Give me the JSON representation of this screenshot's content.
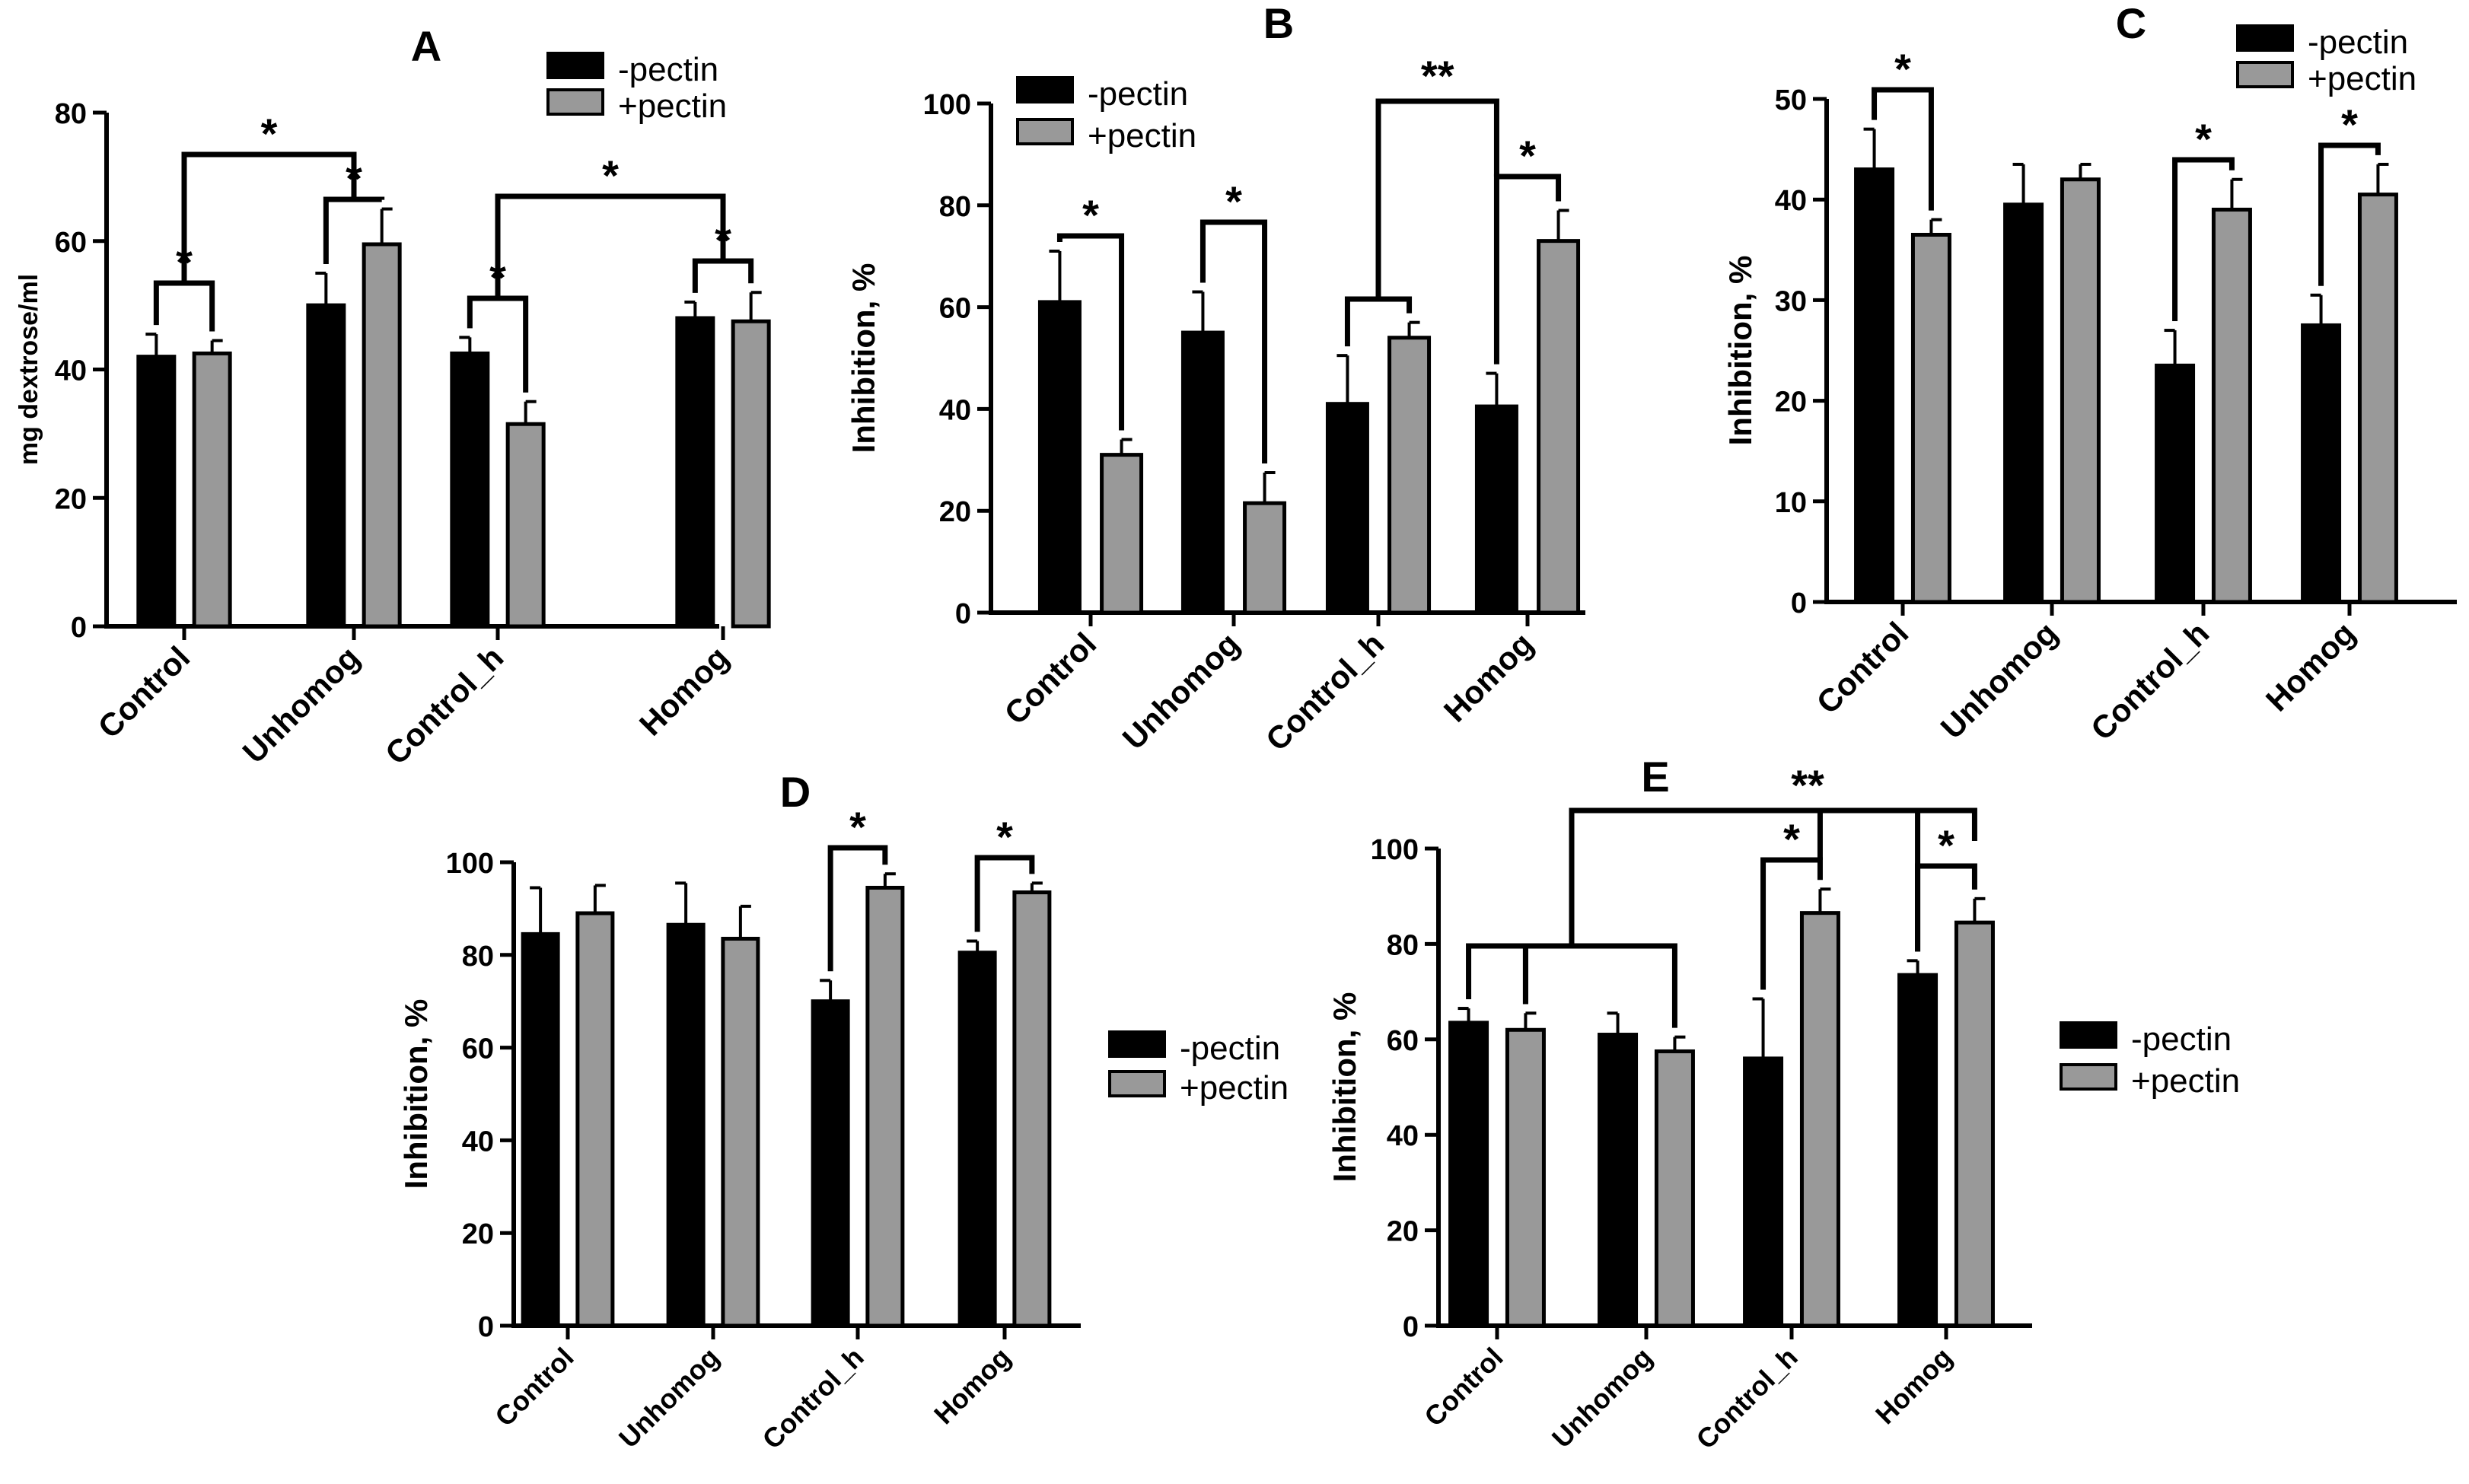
{
  "colors": {
    "minus": "#000000",
    "plus": "#999999",
    "outline": "#000000"
  },
  "chart_data": [
    {
      "panel": "A",
      "type": "bar",
      "title": "A",
      "xlabel": "",
      "ylabel": "mg dextrose/ml",
      "ylim": [
        0,
        80
      ],
      "yticks": [
        0,
        20,
        40,
        60,
        80
      ],
      "categories": [
        "Control",
        "Unhomog",
        "Control_h",
        "Homog"
      ],
      "series": [
        {
          "name": "-pectin",
          "values": [
            42,
            50,
            42.5,
            48
          ],
          "errors": [
            3.5,
            5,
            2.5,
            2.5
          ]
        },
        {
          "name": "+pectin",
          "values": [
            42.5,
            59.5,
            31.5,
            47.5
          ],
          "errors": [
            2,
            5.5,
            3.5,
            4.5
          ]
        }
      ],
      "legend": "top-right",
      "annotations": [
        {
          "label": "*",
          "from": [
            0,
            0
          ],
          "to": [
            0,
            1
          ]
        },
        {
          "label": "*",
          "from": [
            1,
            0
          ],
          "to": [
            1,
            1
          ]
        },
        {
          "label": "*",
          "from": [
            2,
            0
          ],
          "to": [
            2,
            1
          ]
        },
        {
          "label": "*",
          "from": [
            3,
            0
          ],
          "to": [
            3,
            1
          ]
        }
      ]
    },
    {
      "panel": "B",
      "type": "bar",
      "title": "B",
      "xlabel": "",
      "ylabel": "Inhibition, %",
      "ylim": [
        0,
        100
      ],
      "yticks": [
        0,
        20,
        40,
        60,
        80,
        100
      ],
      "categories": [
        "Control",
        "Unhomog",
        "Control_h",
        "Homog"
      ],
      "series": [
        {
          "name": "-pectin",
          "values": [
            61,
            55,
            41,
            40.5
          ],
          "errors": [
            10,
            8,
            9.5,
            6.5
          ]
        },
        {
          "name": "+pectin",
          "values": [
            31,
            21.5,
            54,
            73
          ],
          "errors": [
            3,
            6,
            3,
            6
          ]
        }
      ],
      "legend": "top-left",
      "annotations": [
        {
          "label": "*",
          "from": [
            0,
            0
          ],
          "to": [
            0,
            1
          ]
        },
        {
          "label": "*",
          "from": [
            1,
            0
          ],
          "to": [
            1,
            1
          ]
        },
        {
          "label": "*",
          "from": [
            3,
            0
          ],
          "to": [
            3,
            1
          ]
        },
        {
          "label": "**",
          "from": [
            2,
            0
          ],
          "to": [
            3,
            0
          ]
        }
      ]
    },
    {
      "panel": "C",
      "type": "bar",
      "title": "C",
      "xlabel": "",
      "ylabel": "Inhibition, %",
      "ylim": [
        0,
        50
      ],
      "yticks": [
        0,
        10,
        20,
        30,
        40,
        50
      ],
      "categories": [
        "Control",
        "Unhomog",
        "Control_h",
        "Homog"
      ],
      "series": [
        {
          "name": "-pectin",
          "values": [
            43,
            39.5,
            23.5,
            27.5
          ],
          "errors": [
            4,
            4,
            3.5,
            3
          ]
        },
        {
          "name": "+pectin",
          "values": [
            36.5,
            42,
            39,
            40.5
          ],
          "errors": [
            1.5,
            1.5,
            3,
            3
          ]
        }
      ],
      "legend": "top-right",
      "annotations": [
        {
          "label": "*",
          "from": [
            0,
            0
          ],
          "to": [
            0,
            1
          ]
        },
        {
          "label": "*",
          "from": [
            2,
            0
          ],
          "to": [
            2,
            1
          ]
        },
        {
          "label": "*",
          "from": [
            3,
            0
          ],
          "to": [
            3,
            1
          ]
        }
      ]
    },
    {
      "panel": "D",
      "type": "bar",
      "title": "D",
      "xlabel": "",
      "ylabel": "Inhibition, %",
      "ylim": [
        0,
        100
      ],
      "yticks": [
        0,
        20,
        40,
        60,
        80,
        100
      ],
      "categories": [
        "Control",
        "Unhomog",
        "Control_h",
        "Homog"
      ],
      "series": [
        {
          "name": "-pectin",
          "values": [
            84.5,
            86.5,
            70,
            80.5
          ],
          "errors": [
            10,
            9,
            4.5,
            2.5
          ]
        },
        {
          "name": "+pectin",
          "values": [
            89,
            83.5,
            94.5,
            93.5
          ],
          "errors": [
            6,
            7,
            3,
            2
          ]
        }
      ],
      "legend": "right",
      "annotations": [
        {
          "label": "*",
          "from": [
            2,
            0
          ],
          "to": [
            2,
            1
          ]
        },
        {
          "label": "*",
          "from": [
            3,
            0
          ],
          "to": [
            3,
            1
          ]
        }
      ]
    },
    {
      "panel": "E",
      "type": "bar",
      "title": "E",
      "xlabel": "",
      "ylabel": "Inhibition, %",
      "ylim": [
        0,
        100
      ],
      "yticks": [
        0,
        20,
        40,
        60,
        80,
        100
      ],
      "categories": [
        "Control",
        "Unhomog",
        "Control_h",
        "Homog"
      ],
      "series": [
        {
          "name": "-pectin",
          "values": [
            63.5,
            61,
            56,
            73.5
          ],
          "errors": [
            3,
            4.5,
            12.5,
            3
          ]
        },
        {
          "name": "+pectin",
          "values": [
            62,
            57.5,
            86.5,
            84.5
          ],
          "errors": [
            3.5,
            3,
            5,
            5
          ]
        }
      ],
      "legend": "right",
      "annotations": [
        {
          "label": "*",
          "from": [
            2,
            0
          ],
          "to": [
            2,
            1
          ]
        },
        {
          "label": "*",
          "from": [
            3,
            0
          ],
          "to": [
            3,
            1
          ]
        },
        {
          "label": "**",
          "from": [
            0,
            0
          ],
          "to": [
            3,
            1
          ]
        }
      ]
    }
  ]
}
